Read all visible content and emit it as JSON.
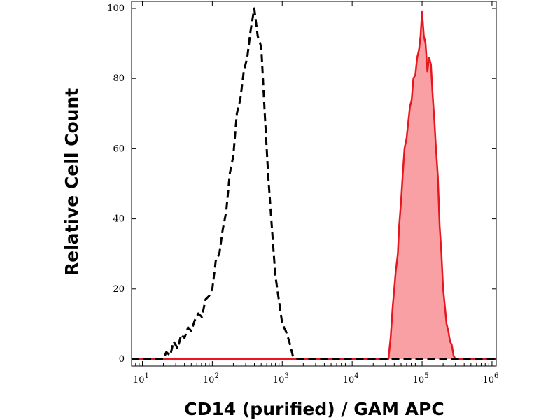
{
  "chart_data": {
    "type": "area",
    "title": "",
    "xlabel": "CD14 (purified) / GAM APC",
    "ylabel": "Relative Cell Count",
    "x_scale": "log",
    "xlim": [
      7,
      1150000
    ],
    "ylim": [
      -2,
      102
    ],
    "x_ticks": [
      {
        "value": 10,
        "base": "10",
        "exp": "1"
      },
      {
        "value": 100,
        "base": "10",
        "exp": "2"
      },
      {
        "value": 1000,
        "base": "10",
        "exp": "3"
      },
      {
        "value": 10000,
        "base": "10",
        "exp": "4"
      },
      {
        "value": 100000,
        "base": "10",
        "exp": "5"
      },
      {
        "value": 1000000,
        "base": "10",
        "exp": "6"
      }
    ],
    "y_ticks": [
      0,
      20,
      40,
      60,
      80,
      100
    ],
    "grid": false,
    "legend": "none",
    "series": [
      {
        "style": "dashed-line",
        "color": "#000000",
        "x": [
          7,
          20,
          22,
          25,
          28,
          32,
          36,
          40,
          45,
          50,
          56,
          63,
          71,
          80,
          90,
          100,
          112,
          126,
          141,
          158,
          178,
          200,
          224,
          251,
          282,
          316,
          355,
          398,
          447,
          501,
          562,
          631,
          708,
          794,
          891,
          1000,
          1122,
          1259,
          1413,
          1585,
          1778,
          2000,
          1150000
        ],
        "y": [
          0,
          0,
          2,
          1,
          5,
          3,
          7,
          6,
          9,
          8,
          11,
          13,
          12,
          17,
          18,
          20,
          28,
          30,
          37,
          42,
          53,
          58,
          70,
          74,
          82,
          86,
          94,
          100,
          92,
          89,
          70,
          52,
          38,
          24,
          17,
          10,
          8,
          5,
          1,
          0,
          0,
          0,
          0
        ]
      },
      {
        "style": "filled-area",
        "color": "#e8161e",
        "fill": "#f8a0a3",
        "x": [
          7,
          33000,
          35500,
          38000,
          40000,
          42000,
          45000,
          47000,
          50000,
          53000,
          56000,
          60000,
          63000,
          67000,
          71000,
          75000,
          80000,
          85000,
          90000,
          95000,
          100000,
          106000,
          112000,
          119000,
          126000,
          134000,
          141000,
          150000,
          158000,
          168000,
          178000,
          188000,
          200000,
          212000,
          224000,
          237000,
          251000,
          266000,
          282000,
          300000,
          320000,
          1150000
        ],
        "y": [
          0,
          0,
          6,
          15,
          20,
          25,
          30,
          38,
          45,
          53,
          60,
          63,
          67,
          72,
          74,
          80,
          81,
          86,
          88,
          92,
          99,
          92,
          90,
          82,
          86,
          84,
          76,
          68,
          60,
          52,
          38,
          31,
          20,
          15,
          10,
          8,
          5,
          4,
          1,
          0,
          0,
          0
        ]
      }
    ]
  }
}
